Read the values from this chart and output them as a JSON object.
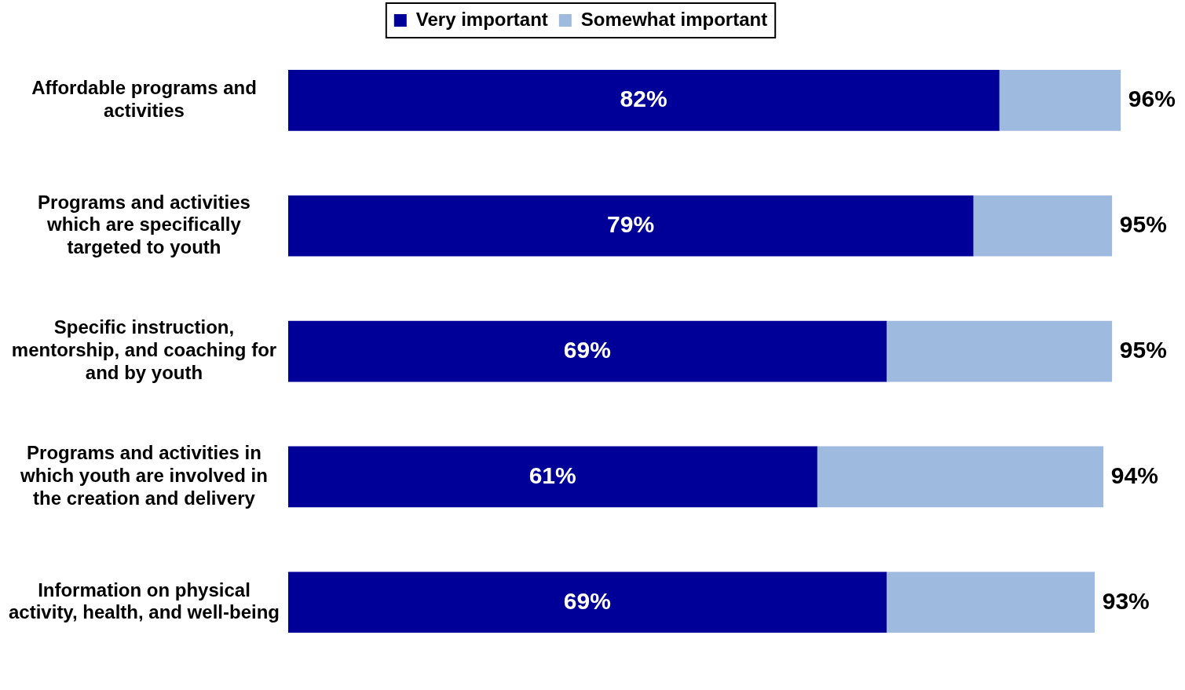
{
  "chart_data": {
    "type": "bar",
    "orientation": "horizontal",
    "stacked": true,
    "categories": [
      "Affordable programs and activities",
      "Programs and activities which are specifically targeted to youth",
      "Specific instruction, mentorship, and coaching for and by youth",
      "Programs and activities in which youth are involved in the creation and delivery",
      "Information on physical activity, health, and well-being"
    ],
    "series": [
      {
        "name": "Very important",
        "color": "#000099",
        "values": [
          82,
          79,
          69,
          61,
          69
        ],
        "value_labels": [
          "82%",
          "79%",
          "69%",
          "61%",
          "69%"
        ]
      },
      {
        "name": "Somewhat important",
        "color": "#9fbadf",
        "values": [
          14,
          16,
          26,
          33,
          24
        ]
      }
    ],
    "totals": [
      "96%",
      "95%",
      "95%",
      "94%",
      "93%"
    ],
    "tick_labels": "y",
    "grid": false,
    "legend": "top"
  }
}
